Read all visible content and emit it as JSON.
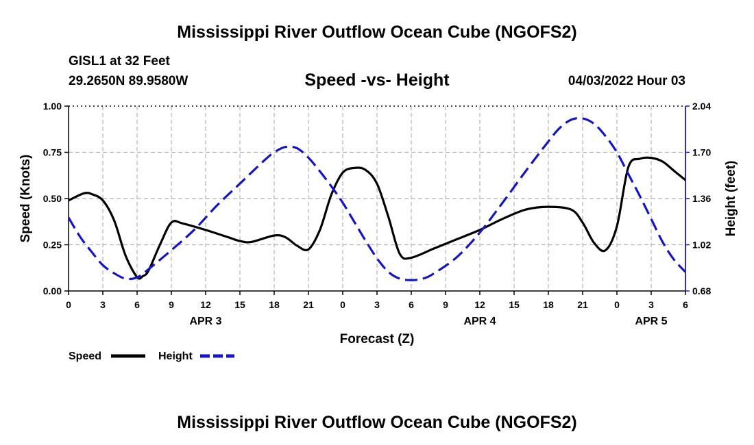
{
  "header": {
    "title": "Mississippi River Outflow Ocean Cube (NGOFS2)",
    "station": "GISL1 at 32 Feet",
    "coords": "29.2650N  89.9580W",
    "subtitle": "Speed -vs- Height",
    "date": "04/03/2022 Hour 03"
  },
  "footer": {
    "title": "Mississippi River Outflow Ocean Cube (NGOFS2)"
  },
  "legend": {
    "speed": "Speed",
    "height": "Height"
  },
  "colors": {
    "speed": "#000000",
    "height": "#1414c8",
    "grid": "#b4b4b4"
  },
  "chart_data": {
    "type": "line",
    "title": "Speed -vs- Height",
    "xlabel": "Forecast (Z)",
    "ylabel_left": "Speed (Knots)",
    "ylabel_right": "Height (feet)",
    "x_range": [
      0,
      54
    ],
    "x_ticks": [
      0,
      3,
      6,
      9,
      12,
      15,
      18,
      21,
      24,
      27,
      30,
      33,
      36,
      39,
      42,
      45,
      48,
      51,
      54
    ],
    "x_tick_labels": [
      "0",
      "3",
      "6",
      "9",
      "12",
      "15",
      "18",
      "21",
      "0",
      "3",
      "6",
      "9",
      "12",
      "15",
      "18",
      "21",
      "0",
      "3",
      "6"
    ],
    "day_labels": [
      {
        "x": 12,
        "label": "APR 3"
      },
      {
        "x": 36,
        "label": "APR 4"
      },
      {
        "x": 51,
        "label": "APR 5"
      }
    ],
    "y_left": {
      "range": [
        0,
        1
      ],
      "ticks": [
        0,
        0.25,
        0.5,
        0.75,
        1
      ],
      "tick_labels": [
        "0.00",
        "0.25",
        "0.50",
        "0.75",
        "1.00"
      ]
    },
    "y_right": {
      "range": [
        0.68,
        2.04
      ],
      "ticks": [
        0.68,
        1.02,
        1.36,
        1.7,
        2.04
      ],
      "tick_labels": [
        "0.68",
        "1.02",
        "1.36",
        "1.70",
        "2.04"
      ]
    },
    "grid": true,
    "series": [
      {
        "name": "Speed",
        "axis": "left",
        "style": "solid",
        "x": [
          0,
          1,
          1.5,
          2,
          3,
          4,
          5,
          6,
          6.5,
          7,
          8,
          9,
          10,
          12,
          14,
          15,
          16,
          18,
          19,
          20,
          21,
          22,
          23,
          24,
          25,
          26,
          27,
          28,
          29,
          30,
          32,
          34,
          36,
          38,
          40,
          42,
          44,
          45,
          46,
          47,
          48,
          49,
          50,
          51,
          52,
          53,
          54
        ],
        "values": [
          0.49,
          0.52,
          0.53,
          0.525,
          0.49,
          0.38,
          0.19,
          0.075,
          0.08,
          0.11,
          0.25,
          0.37,
          0.365,
          0.33,
          0.29,
          0.27,
          0.265,
          0.3,
          0.29,
          0.245,
          0.225,
          0.33,
          0.52,
          0.64,
          0.665,
          0.655,
          0.58,
          0.4,
          0.2,
          0.18,
          0.23,
          0.28,
          0.33,
          0.39,
          0.44,
          0.455,
          0.44,
          0.37,
          0.26,
          0.22,
          0.35,
          0.67,
          0.715,
          0.72,
          0.7,
          0.65,
          0.6
        ]
      },
      {
        "name": "Height",
        "axis": "right",
        "style": "dashed",
        "x": [
          0,
          1,
          2,
          3,
          4,
          5,
          6,
          7,
          9,
          11,
          13,
          15,
          17,
          18,
          19,
          20,
          21,
          22,
          23,
          24,
          25,
          26,
          27,
          28,
          29,
          30,
          31,
          32,
          34,
          36,
          38,
          40,
          42,
          43,
          44,
          45,
          46,
          47,
          48,
          49,
          50,
          51,
          52,
          53,
          54
        ],
        "values": [
          1.22,
          1.08,
          0.97,
          0.87,
          0.81,
          0.77,
          0.78,
          0.84,
          0.98,
          1.13,
          1.31,
          1.47,
          1.63,
          1.7,
          1.74,
          1.73,
          1.66,
          1.56,
          1.45,
          1.33,
          1.19,
          1.05,
          0.92,
          0.82,
          0.77,
          0.76,
          0.77,
          0.81,
          0.93,
          1.11,
          1.33,
          1.56,
          1.78,
          1.88,
          1.94,
          1.95,
          1.91,
          1.82,
          1.7,
          1.54,
          1.38,
          1.21,
          1.04,
          0.91,
          0.82
        ]
      }
    ]
  }
}
